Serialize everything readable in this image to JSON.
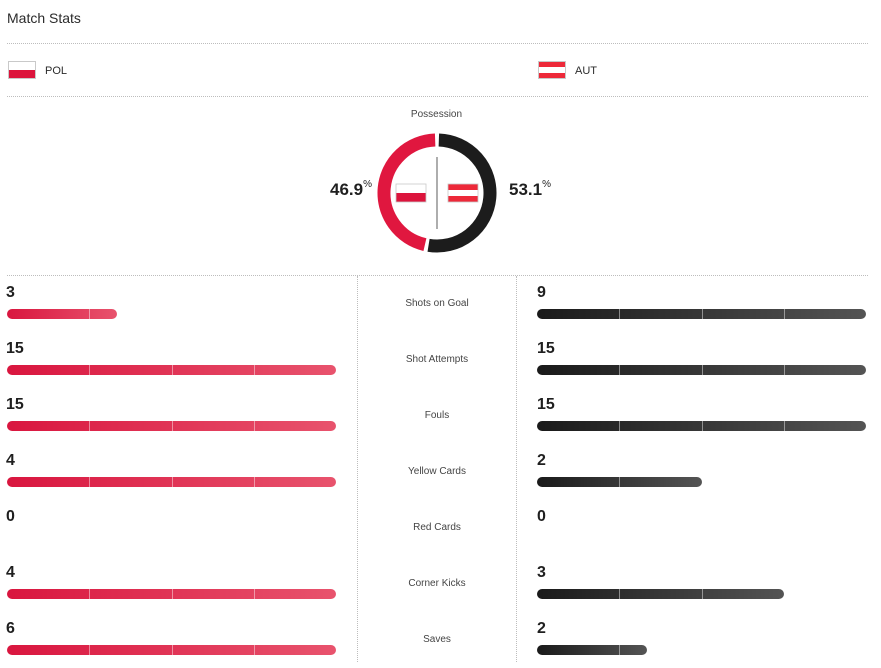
{
  "header": {
    "title": "Match Stats"
  },
  "teams": {
    "home": {
      "abbr": "POL",
      "flag_stripes": [
        "#ffffff",
        "#dc143c"
      ],
      "bar_colors": [
        "#d9163f",
        "#e8536d"
      ]
    },
    "away": {
      "abbr": "AUT",
      "flag_stripes": [
        "#ed2939",
        "#ffffff",
        "#ed2939"
      ],
      "bar_colors": [
        "#1a1a1a",
        "#545454"
      ]
    }
  },
  "possession": {
    "label": "Possession",
    "home_value": "46.9",
    "away_value": "53.1",
    "unit": "%",
    "home_color": "#e0173f",
    "away_color": "#1c1c1c"
  },
  "stats": [
    {
      "label": "Shots on Goal",
      "home": "3",
      "away": "9"
    },
    {
      "label": "Shot Attempts",
      "home": "15",
      "away": "15"
    },
    {
      "label": "Fouls",
      "home": "15",
      "away": "15"
    },
    {
      "label": "Yellow Cards",
      "home": "4",
      "away": "2"
    },
    {
      "label": "Red Cards",
      "home": "0",
      "away": "0"
    },
    {
      "label": "Corner Kicks",
      "home": "4",
      "away": "3"
    },
    {
      "label": "Saves",
      "home": "6",
      "away": "2"
    }
  ]
}
